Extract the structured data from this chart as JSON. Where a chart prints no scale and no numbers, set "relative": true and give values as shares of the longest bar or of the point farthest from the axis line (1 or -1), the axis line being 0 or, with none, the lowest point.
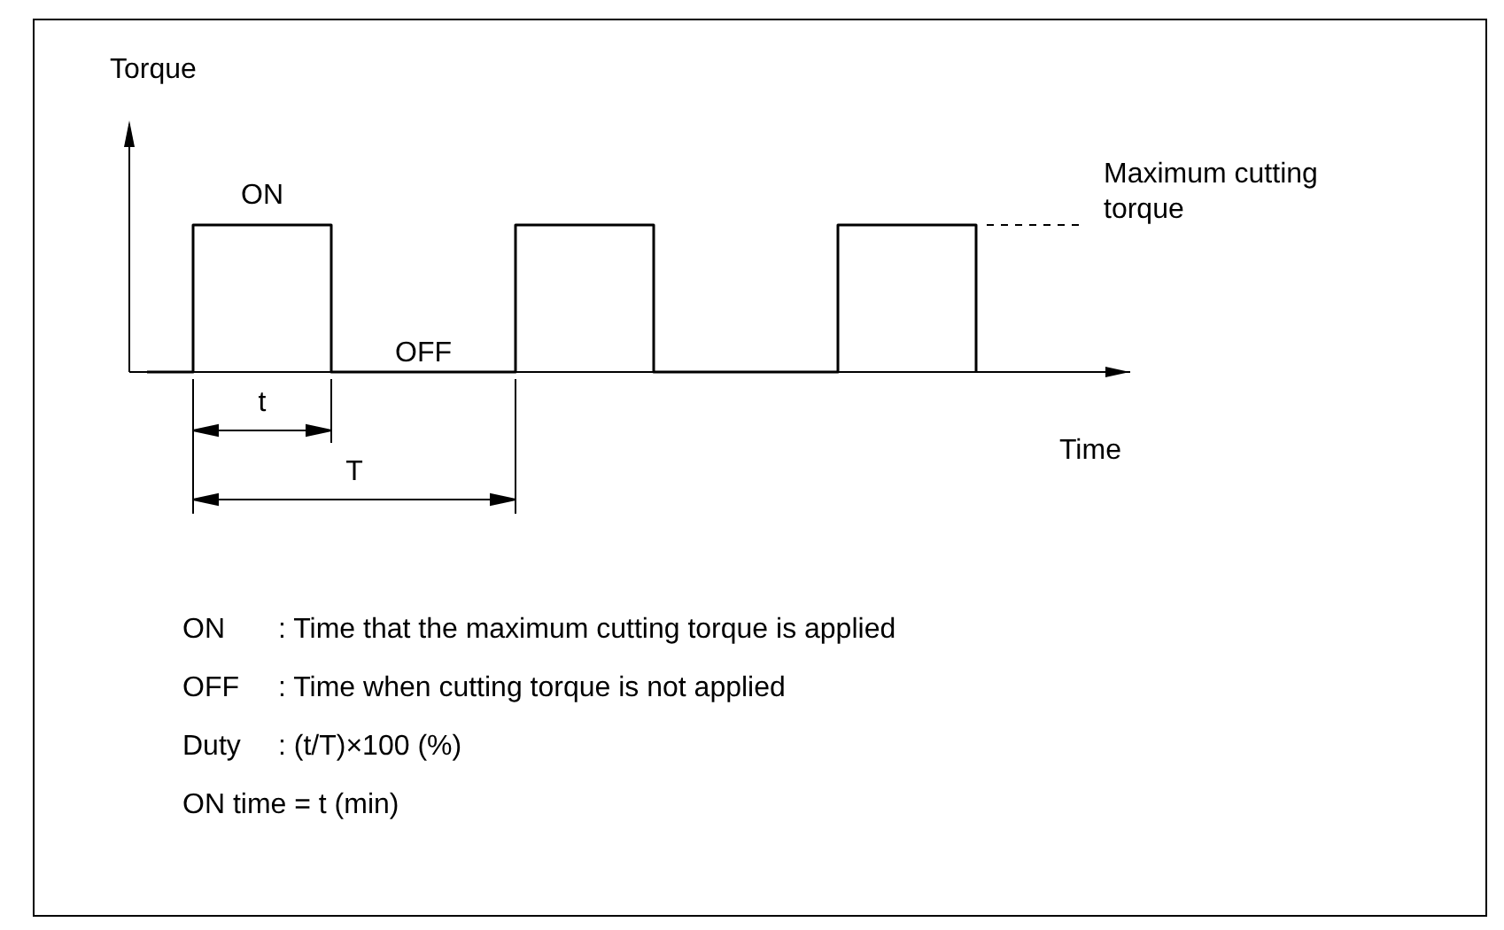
{
  "chart_data": {
    "type": "step",
    "relative": true,
    "xlabel": "Time",
    "ylabel": "Torque",
    "categories": [
      null,
      null,
      null,
      null,
      null,
      null,
      null,
      null,
      null,
      null,
      null,
      null,
      null,
      null,
      null,
      null,
      null,
      null,
      null
    ],
    "series": [
      {
        "color": "#000000",
        "values": [
          0,
          1,
          1,
          1,
          0,
          0,
          0,
          0,
          1,
          1,
          1,
          0,
          0,
          0,
          0,
          1,
          1,
          1,
          0
        ]
      }
    ],
    "annotations": [
      "ON",
      "OFF",
      "Maximum cutting torque",
      "t",
      "T",
      "ON : Time that the maximum cutting torque is applied",
      "OFF : Time when cutting torque is not applied",
      "Duty : (t/T)×100 (%)",
      "ON time = t (min)"
    ]
  }
}
